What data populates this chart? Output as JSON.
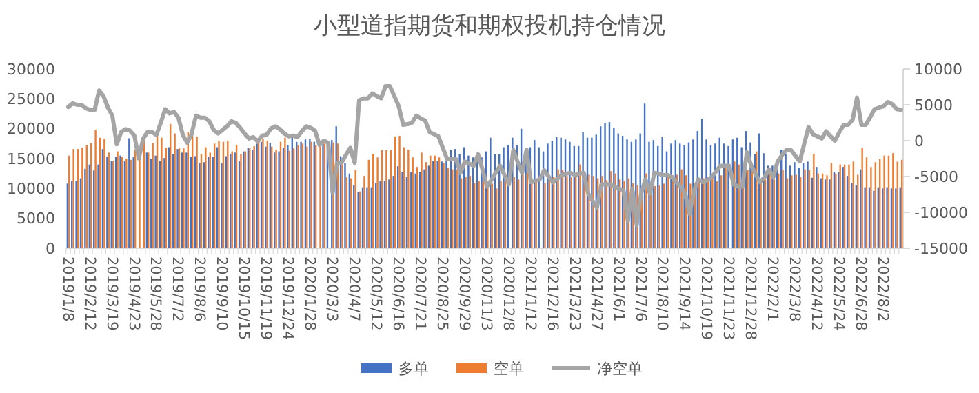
{
  "chart_data": {
    "type": "bar",
    "title": "小型道指期货和期权投机持仓情况",
    "categories": [
      "2019/1/8",
      null,
      null,
      null,
      null,
      "2019/2/12",
      null,
      null,
      null,
      null,
      "2019/3/19",
      null,
      null,
      null,
      null,
      "2019/4/23",
      null,
      null,
      null,
      null,
      "2019/5/28",
      null,
      null,
      null,
      null,
      "2019/7/2",
      null,
      null,
      null,
      null,
      "2019/8/6",
      null,
      null,
      null,
      null,
      "2019/9/10",
      null,
      null,
      null,
      null,
      "2019/10/15",
      null,
      null,
      null,
      null,
      "2019/11/19",
      null,
      null,
      null,
      null,
      "2019/12/24",
      null,
      null,
      null,
      null,
      "2020/1/28",
      null,
      null,
      null,
      null,
      "2020/3/3",
      null,
      null,
      null,
      null,
      "2020/4/7",
      null,
      null,
      null,
      null,
      "2020/5/12",
      null,
      null,
      null,
      null,
      "2020/6/16",
      null,
      null,
      null,
      null,
      "2020/7/21",
      null,
      null,
      null,
      null,
      "2020/8/25",
      null,
      null,
      null,
      null,
      "2020/9/29",
      null,
      null,
      null,
      null,
      "2020/11/3",
      null,
      null,
      null,
      null,
      "2020/12/8",
      null,
      null,
      null,
      null,
      "2021/1/12",
      null,
      null,
      null,
      null,
      "2021/2/16",
      null,
      null,
      null,
      null,
      "2021/3/23",
      null,
      null,
      null,
      null,
      "2021/4/27",
      null,
      null,
      null,
      null,
      "2021/6/1",
      null,
      null,
      null,
      null,
      "2021/7/6",
      null,
      null,
      null,
      null,
      "2021/8/10",
      null,
      null,
      null,
      null,
      "2021/9/14",
      null,
      null,
      null,
      null,
      "2021/10/19",
      null,
      null,
      null,
      null,
      "2021/11/23",
      null,
      null,
      null,
      null,
      "2021/12/28",
      null,
      null,
      null,
      null,
      "2022/2/1",
      null,
      null,
      null,
      null,
      "2022/3/8",
      null,
      null,
      null,
      null,
      "2022/4/12",
      null,
      null,
      null,
      null,
      "2022/5/24",
      null,
      null,
      null,
      null,
      "2022/6/28",
      null,
      null,
      null,
      null,
      "2022/8/2",
      null,
      null,
      null,
      null
    ],
    "series": [
      {
        "name": "多单",
        "color": "#4472c4",
        "values": [
          10800,
          11200,
          11300,
          11700,
          13300,
          14000,
          13000,
          14000,
          16600,
          15300,
          14600,
          15300,
          15500,
          14600,
          18400,
          15300,
          null,
          null,
          16000,
          15000,
          15500,
          14600,
          15100,
          16900,
          15800,
          16600,
          16000,
          16000,
          15300,
          15400,
          14200,
          14400,
          15300,
          15300,
          16900,
          14200,
          15400,
          15700,
          16000,
          14600,
          16200,
          16800,
          16500,
          17500,
          17800,
          17000,
          17600,
          16000,
          16200,
          16800,
          17200,
          18500,
          17800,
          17800,
          18200,
          18300,
          17800,
          null,
          18000,
          17700,
          18100,
          20400,
          15400,
          14200,
          12500,
          10600,
          9400,
          10200,
          10200,
          10200,
          10900,
          11200,
          11300,
          11500,
          12100,
          13700,
          12800,
          11900,
          12700,
          12500,
          12800,
          13200,
          13800,
          14600,
          14600,
          14500,
          14600,
          16400,
          16600,
          15800,
          16900,
          15500,
          15200,
          14500,
          15200,
          16200,
          18500,
          15800,
          15800,
          16900,
          17300,
          18500,
          17300,
          20000,
          14500,
          16900,
          18100,
          16900,
          16200,
          17500,
          18000,
          18600,
          18500,
          18200,
          17800,
          17100,
          17100,
          19400,
          18500,
          18500,
          19000,
          20400,
          21000,
          21100,
          20100,
          19200,
          18800,
          18200,
          17800,
          18200,
          19200,
          24200,
          17800,
          18100,
          17100,
          18600,
          16200,
          17500,
          18100,
          17500,
          17300,
          17700,
          18200,
          19600,
          21700,
          18200,
          17300,
          17500,
          18500,
          17500,
          17100,
          18200,
          18500,
          16900,
          19600,
          17700,
          15800,
          19200,
          15900,
          13800,
          13800,
          13100,
          16500,
          15800,
          13800,
          14400,
          13500,
          14200,
          14500,
          11800,
          13600,
          11700,
          11500,
          11500,
          12700,
          12700,
          13600,
          12100,
          10900,
          10600,
          13200,
          10200,
          10200,
          9600,
          10200,
          10000,
          10200,
          10000,
          10000,
          10200
        ]
      },
      {
        "name": "空单",
        "color": "#ed7d31",
        "values": [
          15500,
          16600,
          16600,
          16800,
          17300,
          17600,
          19800,
          18500,
          18300,
          16000,
          14600,
          16200,
          15300,
          15000,
          14800,
          16500,
          16800,
          18000,
          16000,
          17600,
          19000,
          18500,
          16800,
          20800,
          19200,
          16700,
          16700,
          19400,
          19000,
          18700,
          15800,
          16900,
          16000,
          17500,
          18000,
          17800,
          18000,
          16200,
          17300,
          15800,
          16200,
          16700,
          17100,
          18300,
          18300,
          18000,
          17000,
          16500,
          17800,
          18500,
          16300,
          16700,
          17200,
          17500,
          17000,
          17800,
          17200,
          17800,
          17500,
          null,
          17700,
          17500,
          14200,
          11900,
          11700,
          13100,
          9500,
          12100,
          14800,
          15800,
          15200,
          16400,
          16400,
          16400,
          18700,
          18800,
          16900,
          16500,
          15200,
          13600,
          16000,
          14400,
          15500,
          15500,
          15200,
          14200,
          13500,
          13200,
          13200,
          11700,
          11900,
          12100,
          10900,
          11200,
          11200,
          10200,
          10800,
          10000,
          11200,
          11400,
          null,
          11900,
          11500,
          14500,
          12700,
          11500,
          11200,
          null,
          10900,
          12100,
          11900,
          13200,
          13100,
          12100,
          11900,
          12500,
          14000,
          12100,
          12300,
          12100,
          11700,
          12100,
          11400,
          12900,
          12500,
          11500,
          11200,
          11700,
          10900,
          10500,
          10200,
          12500,
          10800,
          10400,
          10500,
          10800,
          12500,
          12200,
          12300,
          13200,
          12200,
          10800,
          10900,
          11200,
          11700,
          11200,
          12300,
          11200,
          12200,
          13500,
          null,
          14500,
          14000,
          12700,
          13100,
          14200,
          16200,
          11500,
          11500,
          12700,
          11500,
          12500,
          13100,
          11700,
          12200,
          12300,
          11900,
          13200,
          13100,
          15800,
          12500,
          12500,
          12200,
          14200,
          12500,
          14000,
          14000,
          14000,
          14500,
          12300,
          16800,
          15200,
          13600,
          14400,
          14900,
          15500,
          15500,
          15900,
          14500,
          14800
        ]
      },
      {
        "name": "净空单",
        "type": "line",
        "axis": "y2",
        "color": "#a5a5a5",
        "values": [
          4700,
          5200,
          5000,
          5000,
          4500,
          4300,
          4300,
          7000,
          6200,
          4600,
          3500,
          -500,
          1200,
          1600,
          1400,
          700,
          -2500,
          300,
          1200,
          1200,
          800,
          2500,
          4400,
          3800,
          4000,
          3200,
          800,
          -300,
          1000,
          3500,
          3200,
          3200,
          2700,
          1500,
          1000,
          1500,
          2000,
          2700,
          2500,
          1800,
          1000,
          300,
          500,
          -100,
          700,
          800,
          1700,
          2000,
          1600,
          1000,
          600,
          700,
          500,
          1300,
          2000,
          1800,
          1400,
          -600,
          0,
          -300,
          -7300,
          -3100,
          -3100,
          -2000,
          -1000,
          -3100,
          5600,
          5900,
          5900,
          6600,
          6200,
          5900,
          7600,
          7600,
          6200,
          4800,
          2200,
          2300,
          2500,
          3500,
          3100,
          2800,
          1200,
          900,
          600,
          -1000,
          -2600,
          -2600,
          -2600,
          -4500,
          -2900,
          -3200,
          -3500,
          -1900,
          -4000,
          -6400,
          -5500,
          -4500,
          -3500,
          -4800,
          -6100,
          -1300,
          -3000,
          -4500,
          -1300,
          -5800,
          -5600,
          -5400,
          -4100,
          -5000,
          -5800,
          -5300,
          -4800,
          -4600,
          -4500,
          -4800,
          -4600,
          -4500,
          -7400,
          -8400,
          -9300,
          -6100,
          -6100,
          -6100,
          -6400,
          -6700,
          -6900,
          -11200,
          -6700,
          -11800,
          -7400,
          -5400,
          -7400,
          -4500,
          -4600,
          -4800,
          -4800,
          -5100,
          -5800,
          -6400,
          -7400,
          -10200,
          -7000,
          -5400,
          -5800,
          -5500,
          -5100,
          -4300,
          -3500,
          -3500,
          -3500,
          -6100,
          -6400,
          -6400,
          -1600,
          -3500,
          -4700,
          -5800,
          -5100,
          -4000,
          -5100,
          -2900,
          -2000,
          -1300,
          -1300,
          -2100,
          -2900,
          -500,
          1900,
          900,
          600,
          300,
          1300,
          600,
          0,
          1200,
          2200,
          2200,
          2900,
          6000,
          2200,
          2200,
          3300,
          4400,
          4600,
          4800,
          5400,
          5100,
          4400,
          4300
        ]
      }
    ],
    "ylim": [
      0,
      30000
    ],
    "yticks": [
      0,
      5000,
      10000,
      15000,
      20000,
      25000,
      30000
    ],
    "y2lim": [
      -15000,
      10000
    ],
    "y2ticks": [
      -15000,
      -10000,
      -5000,
      0,
      5000,
      10000
    ],
    "legend": "bottom",
    "grid": false
  }
}
